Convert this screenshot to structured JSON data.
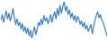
{
  "chart_data": {
    "type": "line",
    "color": "#3d7fc1",
    "tick_labels": false,
    "ylim": [
      20,
      100
    ],
    "values": [
      60,
      72,
      55,
      68,
      80,
      62,
      75,
      58,
      70,
      85,
      65,
      50,
      62,
      48,
      55,
      40,
      52,
      35,
      45,
      30,
      42,
      25,
      38,
      20,
      32,
      45,
      28,
      40,
      55,
      48,
      62,
      50,
      70,
      58,
      65,
      52,
      60,
      72,
      55,
      68,
      78,
      62,
      85,
      70,
      92,
      75,
      88,
      100,
      80,
      90,
      72,
      82,
      65,
      75,
      60,
      70,
      55,
      68,
      62,
      50,
      58,
      45,
      55,
      40,
      48,
      35,
      42,
      50,
      30,
      45,
      60,
      70,
      78,
      65,
      72,
      60,
      55,
      45,
      35,
      25
    ]
  }
}
